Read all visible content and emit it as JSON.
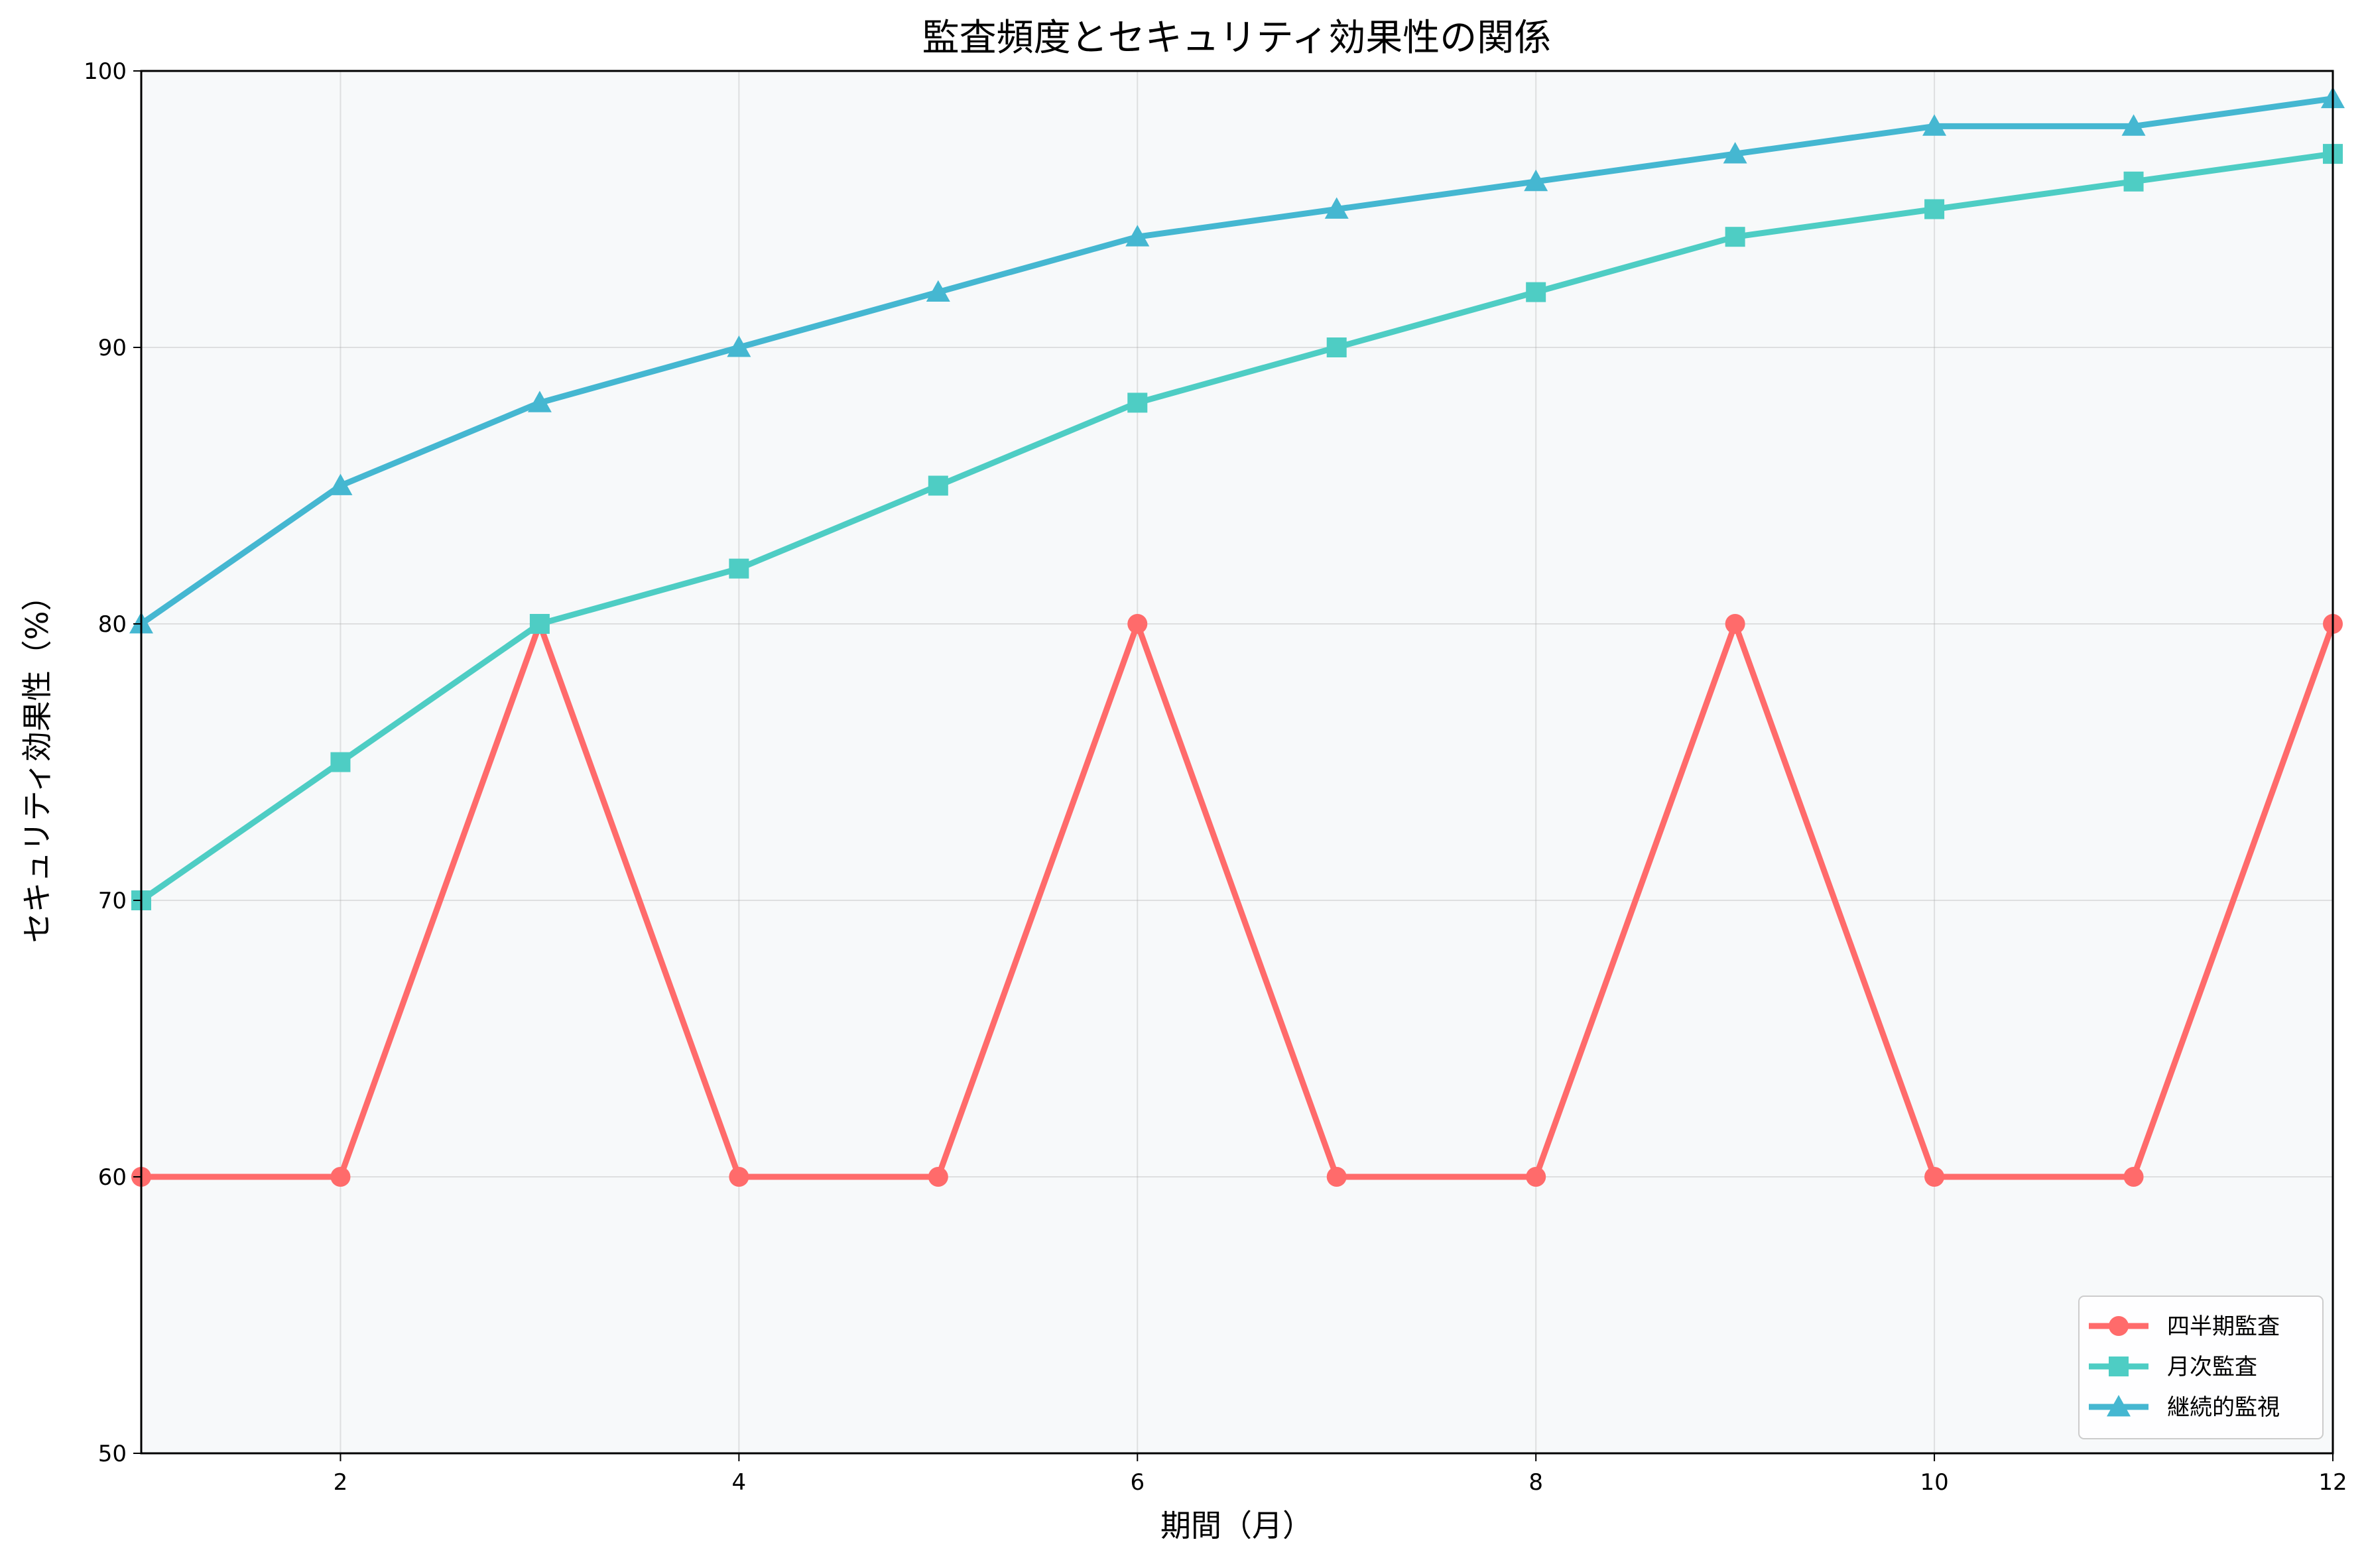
{
  "chart_data": {
    "type": "line",
    "title": "監査頻度とセキュリティ効果性の関係",
    "xlabel": "期間（月）",
    "ylabel": "セキュリティ効果性（%）",
    "xlim": [
      1,
      12
    ],
    "ylim": [
      50,
      100
    ],
    "x": [
      1,
      2,
      3,
      4,
      5,
      6,
      7,
      8,
      9,
      10,
      11,
      12
    ],
    "x_ticks": [
      2,
      4,
      6,
      8,
      10,
      12
    ],
    "y_ticks": [
      50,
      60,
      70,
      80,
      90,
      100
    ],
    "grid": true,
    "legend_position": "bottom-right",
    "background": "#f7f9fa",
    "series": [
      {
        "name": "四半期監査",
        "color": "#ff6b6b",
        "marker": "circle",
        "values": [
          60,
          60,
          80,
          60,
          60,
          80,
          60,
          60,
          80,
          60,
          60,
          80
        ]
      },
      {
        "name": "月次監査",
        "color": "#4ecdc4",
        "marker": "square",
        "values": [
          70,
          75,
          80,
          82,
          85,
          88,
          90,
          92,
          94,
          95,
          96,
          97
        ]
      },
      {
        "name": "継続的監視",
        "color": "#45b7d1",
        "marker": "triangle",
        "values": [
          80,
          85,
          88,
          90,
          92,
          94,
          95,
          96,
          97,
          98,
          98,
          99
        ]
      }
    ]
  }
}
